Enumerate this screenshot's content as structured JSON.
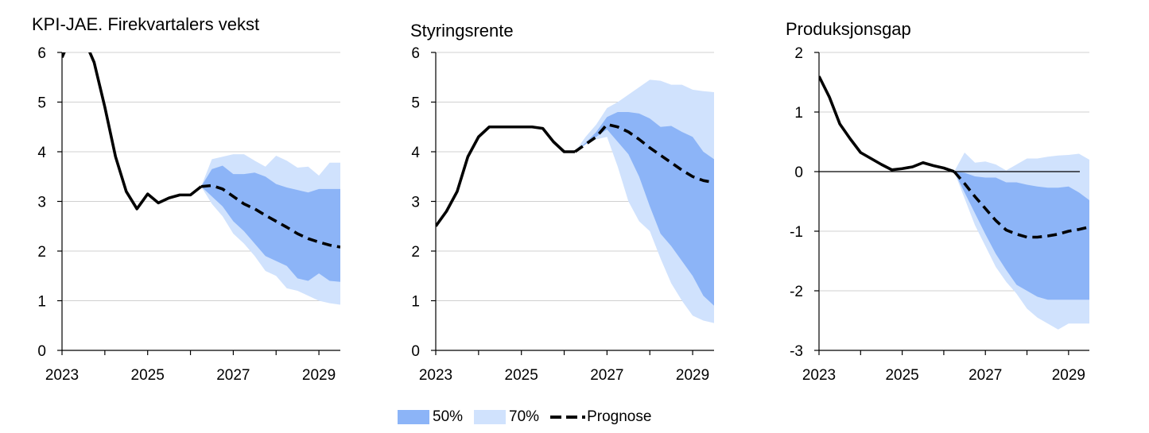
{
  "colors": {
    "band50": "#8cb4f7",
    "band70": "#d0e2fd",
    "line": "#000000",
    "grid": "#d0d0d0"
  },
  "legend": {
    "band50": "50%",
    "band70": "70%",
    "forecast": "Prognose"
  },
  "chart_data": [
    {
      "type": "line",
      "title": "KPI-JAE. Firekvartalers vekst",
      "ylim": [
        0,
        6
      ],
      "yticks": [
        "0",
        "1",
        "2",
        "3",
        "4",
        "5",
        "6"
      ],
      "xlim": [
        2023.0,
        2029.5
      ],
      "xticks": [
        "2023",
        "2025",
        "2027",
        "2029"
      ],
      "history": {
        "x": [
          2023.0,
          2023.25,
          2023.5,
          2023.75,
          2024.0,
          2024.25,
          2024.5,
          2024.75,
          2025.0,
          2025.25,
          2025.5,
          2025.75,
          2026.0,
          2026.25
        ],
        "y": [
          5.9,
          6.4,
          6.3,
          5.8,
          4.9,
          3.9,
          3.2,
          2.85,
          3.15,
          2.97,
          3.07,
          3.13,
          3.13,
          3.3
        ]
      },
      "forecast": {
        "x": [
          2026.25,
          2026.5,
          2026.75,
          2027.0,
          2027.25,
          2027.5,
          2027.75,
          2028.0,
          2028.25,
          2028.5,
          2028.75,
          2029.0,
          2029.25,
          2029.5
        ],
        "y": [
          3.3,
          3.32,
          3.25,
          3.1,
          2.95,
          2.85,
          2.72,
          2.6,
          2.48,
          2.35,
          2.25,
          2.18,
          2.12,
          2.08
        ]
      },
      "band50": {
        "x": [
          2026.25,
          2026.5,
          2026.75,
          2027.0,
          2027.25,
          2027.5,
          2027.75,
          2028.0,
          2028.25,
          2028.5,
          2028.75,
          2029.0,
          2029.25,
          2029.5
        ],
        "lower": [
          3.3,
          3.1,
          2.9,
          2.6,
          2.4,
          2.15,
          1.9,
          1.8,
          1.7,
          1.45,
          1.4,
          1.55,
          1.4,
          1.38
        ],
        "upper": [
          3.3,
          3.65,
          3.72,
          3.55,
          3.55,
          3.58,
          3.5,
          3.35,
          3.28,
          3.23,
          3.18,
          3.25,
          3.25,
          3.25
        ]
      },
      "band70": {
        "x": [
          2026.25,
          2026.5,
          2026.75,
          2027.0,
          2027.25,
          2027.5,
          2027.75,
          2028.0,
          2028.25,
          2028.5,
          2028.75,
          2029.0,
          2029.25,
          2029.5
        ],
        "lower": [
          3.3,
          2.95,
          2.7,
          2.35,
          2.15,
          1.9,
          1.6,
          1.5,
          1.25,
          1.2,
          1.1,
          1.0,
          0.95,
          0.92
        ],
        "upper": [
          3.3,
          3.85,
          3.9,
          3.95,
          3.95,
          3.82,
          3.7,
          3.92,
          3.82,
          3.68,
          3.7,
          3.52,
          3.78,
          3.78
        ]
      }
    },
    {
      "type": "line",
      "title": "Styringsrente",
      "ylim": [
        0,
        6
      ],
      "yticks": [
        "0",
        "1",
        "2",
        "3",
        "4",
        "5",
        "6"
      ],
      "xlim": [
        2023.0,
        2029.5
      ],
      "xticks": [
        "2023",
        "2025",
        "2027",
        "2029"
      ],
      "history": {
        "x": [
          2023.0,
          2023.25,
          2023.5,
          2023.75,
          2024.0,
          2024.25,
          2024.5,
          2024.75,
          2025.0,
          2025.25,
          2025.5,
          2025.75,
          2026.0,
          2026.25
        ],
        "y": [
          2.5,
          2.8,
          3.2,
          3.9,
          4.3,
          4.5,
          4.5,
          4.5,
          4.5,
          4.5,
          4.47,
          4.2,
          4.0,
          4.0
        ]
      },
      "forecast": {
        "x": [
          2026.25,
          2026.5,
          2026.75,
          2027.0,
          2027.25,
          2027.5,
          2027.75,
          2028.0,
          2028.25,
          2028.5,
          2028.75,
          2029.0,
          2029.25,
          2029.5
        ],
        "y": [
          4.0,
          4.15,
          4.3,
          4.55,
          4.5,
          4.4,
          4.25,
          4.08,
          3.93,
          3.78,
          3.63,
          3.5,
          3.42,
          3.38
        ]
      },
      "band50": {
        "x": [
          2026.25,
          2026.5,
          2026.75,
          2027.0,
          2027.25,
          2027.5,
          2027.75,
          2028.0,
          2028.25,
          2028.5,
          2028.75,
          2029.0,
          2029.25,
          2029.5
        ],
        "lower": [
          4.0,
          4.15,
          4.3,
          4.45,
          4.2,
          3.95,
          3.5,
          2.9,
          2.35,
          2.1,
          1.8,
          1.5,
          1.1,
          0.9
        ],
        "upper": [
          4.0,
          4.18,
          4.4,
          4.7,
          4.8,
          4.8,
          4.77,
          4.67,
          4.5,
          4.52,
          4.4,
          4.3,
          4.0,
          3.85
        ]
      },
      "band70": {
        "x": [
          2026.25,
          2026.5,
          2026.75,
          2027.0,
          2027.25,
          2027.5,
          2027.75,
          2028.0,
          2028.25,
          2028.5,
          2028.75,
          2029.0,
          2029.25,
          2029.5
        ],
        "lower": [
          4.0,
          4.15,
          4.25,
          4.3,
          3.7,
          3.0,
          2.6,
          2.4,
          1.85,
          1.35,
          1.0,
          0.7,
          0.6,
          0.55
        ],
        "upper": [
          4.0,
          4.3,
          4.55,
          4.88,
          5.0,
          5.15,
          5.3,
          5.45,
          5.43,
          5.35,
          5.35,
          5.25,
          5.22,
          5.2
        ]
      }
    },
    {
      "type": "line",
      "title": "Produksjonsgap",
      "ylim": [
        -3,
        2
      ],
      "yticks": [
        "-3",
        "-2",
        "-1",
        "0",
        "1",
        "2"
      ],
      "zero_line": true,
      "xlim": [
        2023.0,
        2029.5
      ],
      "xticks": [
        "2023",
        "2025",
        "2027",
        "2029"
      ],
      "history": {
        "x": [
          2023.0,
          2023.25,
          2023.5,
          2023.75,
          2024.0,
          2024.25,
          2024.5,
          2024.75,
          2025.0,
          2025.25,
          2025.5,
          2025.75,
          2026.0,
          2026.25
        ],
        "y": [
          1.6,
          1.25,
          0.8,
          0.55,
          0.32,
          0.22,
          0.12,
          0.03,
          0.05,
          0.08,
          0.15,
          0.1,
          0.06,
          0.0
        ]
      },
      "forecast": {
        "x": [
          2026.25,
          2026.5,
          2026.75,
          2027.0,
          2027.25,
          2027.5,
          2027.75,
          2028.0,
          2028.25,
          2028.5,
          2028.75,
          2029.0,
          2029.25,
          2029.5
        ],
        "y": [
          0.0,
          -0.2,
          -0.42,
          -0.62,
          -0.82,
          -0.98,
          -1.05,
          -1.1,
          -1.1,
          -1.08,
          -1.05,
          -1.0,
          -0.97,
          -0.93
        ]
      },
      "band50": {
        "x": [
          2026.25,
          2026.5,
          2026.75,
          2027.0,
          2027.25,
          2027.5,
          2027.75,
          2028.0,
          2028.25,
          2028.5,
          2028.75,
          2029.0,
          2029.25,
          2029.5
        ],
        "lower": [
          0.0,
          -0.35,
          -0.7,
          -1.05,
          -1.38,
          -1.65,
          -1.9,
          -2.0,
          -2.1,
          -2.15,
          -2.15,
          -2.15,
          -2.15,
          -2.15
        ],
        "upper": [
          0.0,
          -0.02,
          -0.08,
          -0.1,
          -0.1,
          -0.18,
          -0.18,
          -0.22,
          -0.25,
          -0.27,
          -0.27,
          -0.25,
          -0.35,
          -0.48
        ]
      },
      "band70": {
        "x": [
          2026.25,
          2026.5,
          2026.75,
          2027.0,
          2027.25,
          2027.5,
          2027.75,
          2028.0,
          2028.25,
          2028.5,
          2028.75,
          2029.0,
          2029.25,
          2029.5
        ],
        "lower": [
          0.0,
          -0.45,
          -0.9,
          -1.25,
          -1.6,
          -1.85,
          -2.05,
          -2.3,
          -2.45,
          -2.55,
          -2.65,
          -2.55,
          -2.55,
          -2.55
        ],
        "upper": [
          0.0,
          0.32,
          0.15,
          0.17,
          0.12,
          0.02,
          0.12,
          0.22,
          0.22,
          0.25,
          0.27,
          0.28,
          0.3,
          0.2
        ]
      }
    }
  ]
}
